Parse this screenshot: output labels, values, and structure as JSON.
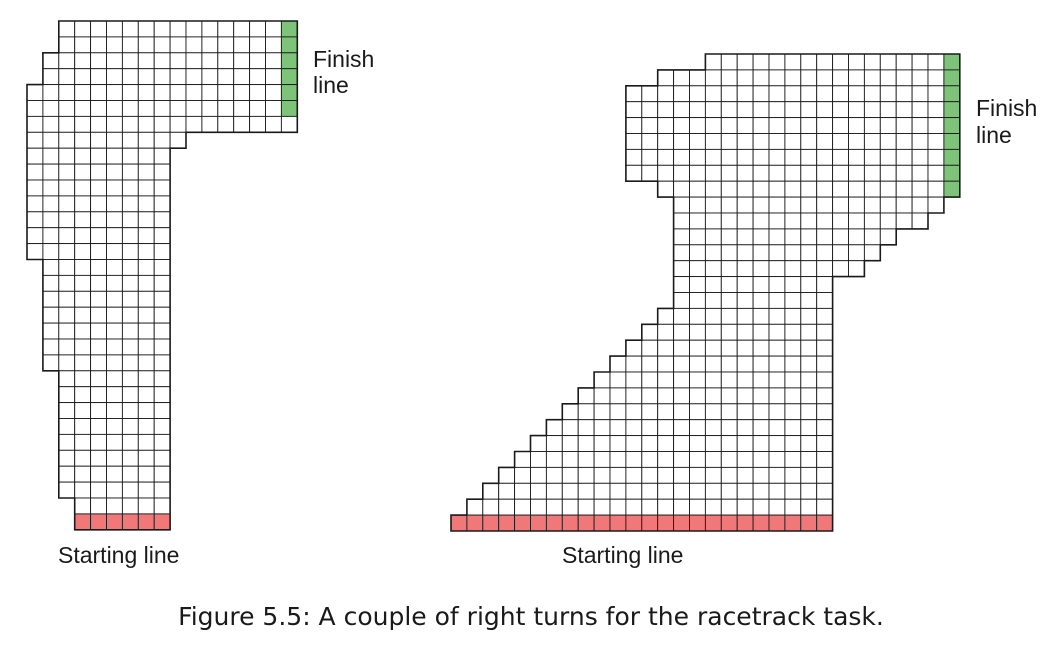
{
  "figure": {
    "caption": "Figure 5.5: A couple of right turns for the racetrack task."
  },
  "tracks": [
    {
      "id": "track-1",
      "finish_label_line1": "Finish",
      "finish_label_line2": "line",
      "start_label": "Starting line",
      "cols": 17,
      "rows": 32,
      "rowRanges": [
        [
          2,
          16
        ],
        [
          2,
          16
        ],
        [
          1,
          16
        ],
        [
          1,
          16
        ],
        [
          0,
          16
        ],
        [
          0,
          16
        ],
        [
          0,
          16
        ],
        [
          0,
          9
        ],
        [
          0,
          8
        ],
        [
          0,
          8
        ],
        [
          0,
          8
        ],
        [
          0,
          8
        ],
        [
          0,
          8
        ],
        [
          0,
          8
        ],
        [
          0,
          8
        ],
        [
          1,
          8
        ],
        [
          1,
          8
        ],
        [
          1,
          8
        ],
        [
          1,
          8
        ],
        [
          1,
          8
        ],
        [
          1,
          8
        ],
        [
          1,
          8
        ],
        [
          2,
          8
        ],
        [
          2,
          8
        ],
        [
          2,
          8
        ],
        [
          2,
          8
        ],
        [
          2,
          8
        ],
        [
          2,
          8
        ],
        [
          2,
          8
        ],
        [
          2,
          8
        ],
        [
          3,
          8
        ],
        [
          3,
          8
        ]
      ],
      "finish_col": 16,
      "finish_rows": [
        0,
        5
      ],
      "start_row": 31
    },
    {
      "id": "track-2",
      "finish_label_line1": "Finish",
      "finish_label_line2": "line",
      "start_label": "Starting line",
      "cols": 32,
      "rows": 30,
      "rowRanges": [
        [
          16,
          31
        ],
        [
          13,
          31
        ],
        [
          11,
          31
        ],
        [
          11,
          31
        ],
        [
          11,
          31
        ],
        [
          11,
          31
        ],
        [
          11,
          31
        ],
        [
          11,
          31
        ],
        [
          13,
          31
        ],
        [
          14,
          30
        ],
        [
          14,
          29
        ],
        [
          14,
          27
        ],
        [
          14,
          26
        ],
        [
          14,
          25
        ],
        [
          14,
          23
        ],
        [
          14,
          23
        ],
        [
          13,
          23
        ],
        [
          12,
          23
        ],
        [
          11,
          23
        ],
        [
          10,
          23
        ],
        [
          9,
          23
        ],
        [
          8,
          23
        ],
        [
          7,
          23
        ],
        [
          6,
          23
        ],
        [
          5,
          23
        ],
        [
          4,
          23
        ],
        [
          3,
          23
        ],
        [
          2,
          23
        ],
        [
          1,
          23
        ],
        [
          0,
          23
        ]
      ],
      "finish_col": 31,
      "finish_rows": [
        0,
        8
      ],
      "start_row": 29
    }
  ],
  "colors": {
    "finish": "#7dc47a",
    "start": "#f07878",
    "grid_line": "#1a1a1a",
    "cell_fill": "#ffffff"
  }
}
